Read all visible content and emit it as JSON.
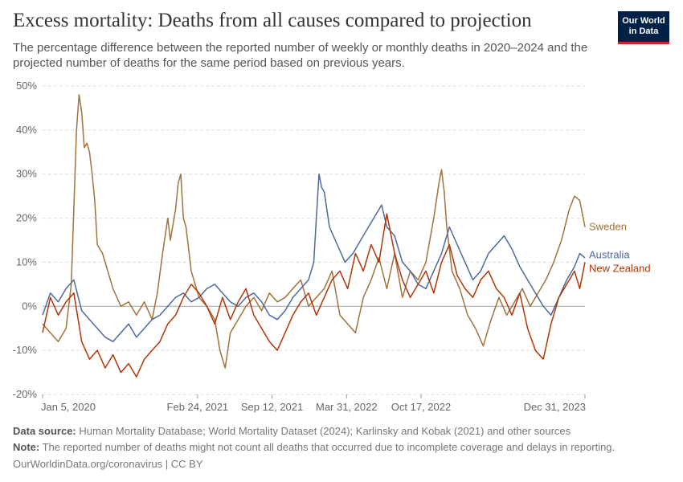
{
  "header": {
    "title": "Excess mortality: Deaths from all causes compared to projection",
    "subtitle": "The percentage difference between the reported number of weekly or monthly deaths in 2020–2024 and the projected number of deaths for the same period based on previous years.",
    "logo_line1": "Our World",
    "logo_line2": "in Data"
  },
  "footer": {
    "source_label": "Data source:",
    "source_text": "Human Mortality Database; World Mortality Dataset (2024); Karlinsky and Kobak (2021) and other sources",
    "note_label": "Note:",
    "note_text": "The reported number of deaths might not count all deaths that occurred due to incomplete coverage and delays in reporting.",
    "credit": "OurWorldinData.org/coronavirus | CC BY"
  },
  "colors": {
    "sweden": "#a2723b",
    "australia": "#4c6a9c",
    "new_zealand": "#b13507",
    "grid": "#dddddd",
    "zero": "#a0a0a0"
  },
  "chart_data": {
    "type": "line",
    "y_unit": "%",
    "ylim": [
      -20,
      50
    ],
    "y_ticks": [
      -20,
      -10,
      0,
      10,
      20,
      30,
      40,
      50
    ],
    "y_tick_labels": [
      "-20%",
      "-10%",
      "0%",
      "10%",
      "20%",
      "30%",
      "40%",
      "50%"
    ],
    "x_start": "2020-01-05",
    "x_end": "2023-12-31",
    "x_ticks": [
      {
        "date": "2020-01-05",
        "label": "Jan 5, 2020"
      },
      {
        "date": "2021-02-24",
        "label": "Feb 24, 2021"
      },
      {
        "date": "2021-09-12",
        "label": "Sep 12, 2021"
      },
      {
        "date": "2022-03-31",
        "label": "Mar 31, 2022"
      },
      {
        "date": "2022-10-17",
        "label": "Oct 17, 2022"
      },
      {
        "date": "2023-12-31",
        "label": "Dec 31, 2023"
      }
    ],
    "grid": true,
    "legend": "right-end labels",
    "series": [
      {
        "name": "Sweden",
        "color": "#a2723b",
        "points": [
          [
            "2020-01-05",
            -4
          ],
          [
            "2020-01-26",
            -6
          ],
          [
            "2020-02-16",
            -8
          ],
          [
            "2020-03-08",
            -5
          ],
          [
            "2020-03-22",
            5
          ],
          [
            "2020-04-05",
            40
          ],
          [
            "2020-04-12",
            48
          ],
          [
            "2020-04-19",
            44
          ],
          [
            "2020-04-26",
            36
          ],
          [
            "2020-05-03",
            37
          ],
          [
            "2020-05-10",
            35
          ],
          [
            "2020-05-17",
            30
          ],
          [
            "2020-05-24",
            24
          ],
          [
            "2020-05-31",
            14
          ],
          [
            "2020-06-14",
            12
          ],
          [
            "2020-06-28",
            8
          ],
          [
            "2020-07-12",
            4
          ],
          [
            "2020-08-02",
            0
          ],
          [
            "2020-08-23",
            1
          ],
          [
            "2020-09-13",
            -2
          ],
          [
            "2020-10-04",
            1
          ],
          [
            "2020-10-25",
            -3
          ],
          [
            "2020-11-08",
            3
          ],
          [
            "2020-11-22",
            12
          ],
          [
            "2020-12-06",
            20
          ],
          [
            "2020-12-13",
            15
          ],
          [
            "2020-12-27",
            22
          ],
          [
            "2021-01-03",
            28
          ],
          [
            "2021-01-10",
            30
          ],
          [
            "2021-01-17",
            20
          ],
          [
            "2021-01-24",
            18
          ],
          [
            "2021-02-07",
            8
          ],
          [
            "2021-02-28",
            2
          ],
          [
            "2021-03-21",
            0
          ],
          [
            "2021-04-11",
            -3
          ],
          [
            "2021-04-25",
            -10
          ],
          [
            "2021-05-09",
            -14
          ],
          [
            "2021-05-23",
            -6
          ],
          [
            "2021-06-13",
            -3
          ],
          [
            "2021-07-04",
            0
          ],
          [
            "2021-07-25",
            2
          ],
          [
            "2021-08-15",
            -1
          ],
          [
            "2021-09-05",
            3
          ],
          [
            "2021-09-26",
            1
          ],
          [
            "2021-10-17",
            2
          ],
          [
            "2021-11-07",
            4
          ],
          [
            "2021-11-28",
            6
          ],
          [
            "2021-12-19",
            0
          ],
          [
            "2022-01-09",
            2
          ],
          [
            "2022-01-30",
            4
          ],
          [
            "2022-02-20",
            8
          ],
          [
            "2022-03-13",
            -2
          ],
          [
            "2022-04-03",
            -4
          ],
          [
            "2022-04-24",
            -6
          ],
          [
            "2022-05-15",
            2
          ],
          [
            "2022-06-05",
            6
          ],
          [
            "2022-06-26",
            11
          ],
          [
            "2022-07-17",
            4
          ],
          [
            "2022-08-07",
            12
          ],
          [
            "2022-08-28",
            2
          ],
          [
            "2022-09-18",
            8
          ],
          [
            "2022-10-09",
            6
          ],
          [
            "2022-10-30",
            10
          ],
          [
            "2022-11-20",
            20
          ],
          [
            "2022-12-04",
            28
          ],
          [
            "2022-12-11",
            31
          ],
          [
            "2022-12-18",
            26
          ],
          [
            "2022-12-25",
            18
          ],
          [
            "2023-01-08",
            8
          ],
          [
            "2023-01-29",
            4
          ],
          [
            "2023-02-19",
            -2
          ],
          [
            "2023-03-12",
            -5
          ],
          [
            "2023-04-02",
            -9
          ],
          [
            "2023-04-23",
            -3
          ],
          [
            "2023-05-14",
            2
          ],
          [
            "2023-06-04",
            -2
          ],
          [
            "2023-06-25",
            1
          ],
          [
            "2023-07-16",
            4
          ],
          [
            "2023-08-06",
            0
          ],
          [
            "2023-08-27",
            3
          ],
          [
            "2023-09-17",
            6
          ],
          [
            "2023-10-08",
            10
          ],
          [
            "2023-10-29",
            15
          ],
          [
            "2023-11-19",
            22
          ],
          [
            "2023-12-03",
            25
          ],
          [
            "2023-12-17",
            24
          ],
          [
            "2023-12-31",
            18
          ]
        ]
      },
      {
        "name": "Australia",
        "color": "#4c6a9c",
        "points": [
          [
            "2020-01-05",
            -2
          ],
          [
            "2020-01-26",
            3
          ],
          [
            "2020-02-16",
            1
          ],
          [
            "2020-03-08",
            4
          ],
          [
            "2020-03-29",
            6
          ],
          [
            "2020-04-19",
            -1
          ],
          [
            "2020-05-10",
            -3
          ],
          [
            "2020-05-31",
            -5
          ],
          [
            "2020-06-21",
            -7
          ],
          [
            "2020-07-12",
            -8
          ],
          [
            "2020-08-02",
            -6
          ],
          [
            "2020-08-23",
            -4
          ],
          [
            "2020-09-13",
            -7
          ],
          [
            "2020-10-04",
            -5
          ],
          [
            "2020-10-25",
            -3
          ],
          [
            "2020-11-15",
            -2
          ],
          [
            "2020-12-06",
            0
          ],
          [
            "2020-12-27",
            2
          ],
          [
            "2021-01-17",
            3
          ],
          [
            "2021-02-07",
            1
          ],
          [
            "2021-02-28",
            2
          ],
          [
            "2021-03-21",
            4
          ],
          [
            "2021-04-11",
            5
          ],
          [
            "2021-05-02",
            3
          ],
          [
            "2021-05-23",
            1
          ],
          [
            "2021-06-13",
            0
          ],
          [
            "2021-07-04",
            2
          ],
          [
            "2021-07-25",
            3
          ],
          [
            "2021-08-15",
            1
          ],
          [
            "2021-09-05",
            -2
          ],
          [
            "2021-09-26",
            -3
          ],
          [
            "2021-10-17",
            -1
          ],
          [
            "2021-11-07",
            2
          ],
          [
            "2021-11-28",
            4
          ],
          [
            "2021-12-19",
            6
          ],
          [
            "2022-01-02",
            10
          ],
          [
            "2022-01-09",
            20
          ],
          [
            "2022-01-16",
            30
          ],
          [
            "2022-01-23",
            27
          ],
          [
            "2022-01-30",
            26
          ],
          [
            "2022-02-13",
            18
          ],
          [
            "2022-03-06",
            14
          ],
          [
            "2022-03-27",
            10
          ],
          [
            "2022-04-17",
            12
          ],
          [
            "2022-05-08",
            15
          ],
          [
            "2022-05-29",
            18
          ],
          [
            "2022-06-19",
            21
          ],
          [
            "2022-07-03",
            23
          ],
          [
            "2022-07-17",
            18
          ],
          [
            "2022-08-07",
            16
          ],
          [
            "2022-08-28",
            10
          ],
          [
            "2022-09-18",
            8
          ],
          [
            "2022-10-09",
            5
          ],
          [
            "2022-10-30",
            4
          ],
          [
            "2022-11-20",
            8
          ],
          [
            "2022-12-11",
            12
          ],
          [
            "2023-01-01",
            18
          ],
          [
            "2023-01-22",
            14
          ],
          [
            "2023-02-12",
            10
          ],
          [
            "2023-03-05",
            6
          ],
          [
            "2023-03-26",
            8
          ],
          [
            "2023-04-16",
            12
          ],
          [
            "2023-05-07",
            14
          ],
          [
            "2023-05-28",
            16
          ],
          [
            "2023-06-18",
            13
          ],
          [
            "2023-07-09",
            9
          ],
          [
            "2023-07-30",
            6
          ],
          [
            "2023-08-20",
            3
          ],
          [
            "2023-09-10",
            0
          ],
          [
            "2023-10-01",
            -2
          ],
          [
            "2023-10-22",
            2
          ],
          [
            "2023-11-12",
            6
          ],
          [
            "2023-12-03",
            9
          ],
          [
            "2023-12-17",
            12
          ],
          [
            "2023-12-31",
            11
          ]
        ]
      },
      {
        "name": "New Zealand",
        "color": "#b13507",
        "points": [
          [
            "2020-01-05",
            -6
          ],
          [
            "2020-01-26",
            2
          ],
          [
            "2020-02-16",
            -2
          ],
          [
            "2020-03-08",
            1
          ],
          [
            "2020-03-29",
            3
          ],
          [
            "2020-04-19",
            -8
          ],
          [
            "2020-05-10",
            -12
          ],
          [
            "2020-05-31",
            -10
          ],
          [
            "2020-06-21",
            -14
          ],
          [
            "2020-07-12",
            -11
          ],
          [
            "2020-08-02",
            -15
          ],
          [
            "2020-08-23",
            -13
          ],
          [
            "2020-09-13",
            -16
          ],
          [
            "2020-10-04",
            -12
          ],
          [
            "2020-10-25",
            -10
          ],
          [
            "2020-11-15",
            -8
          ],
          [
            "2020-12-06",
            -4
          ],
          [
            "2020-12-27",
            -2
          ],
          [
            "2021-01-17",
            2
          ],
          [
            "2021-02-07",
            5
          ],
          [
            "2021-02-28",
            3
          ],
          [
            "2021-03-21",
            0
          ],
          [
            "2021-04-11",
            -4
          ],
          [
            "2021-05-02",
            2
          ],
          [
            "2021-05-23",
            -3
          ],
          [
            "2021-06-13",
            1
          ],
          [
            "2021-07-04",
            4
          ],
          [
            "2021-07-25",
            -2
          ],
          [
            "2021-08-15",
            -5
          ],
          [
            "2021-09-05",
            -8
          ],
          [
            "2021-09-26",
            -10
          ],
          [
            "2021-10-17",
            -6
          ],
          [
            "2021-11-07",
            -2
          ],
          [
            "2021-11-28",
            1
          ],
          [
            "2021-12-19",
            3
          ],
          [
            "2022-01-09",
            -2
          ],
          [
            "2022-01-30",
            2
          ],
          [
            "2022-02-20",
            6
          ],
          [
            "2022-03-13",
            8
          ],
          [
            "2022-04-03",
            4
          ],
          [
            "2022-04-24",
            12
          ],
          [
            "2022-05-15",
            8
          ],
          [
            "2022-06-05",
            14
          ],
          [
            "2022-06-26",
            10
          ],
          [
            "2022-07-17",
            21
          ],
          [
            "2022-08-07",
            12
          ],
          [
            "2022-08-28",
            6
          ],
          [
            "2022-09-18",
            2
          ],
          [
            "2022-10-09",
            5
          ],
          [
            "2022-10-30",
            8
          ],
          [
            "2022-11-20",
            3
          ],
          [
            "2022-12-11",
            10
          ],
          [
            "2023-01-01",
            14
          ],
          [
            "2023-01-22",
            7
          ],
          [
            "2023-02-12",
            4
          ],
          [
            "2023-03-05",
            2
          ],
          [
            "2023-03-26",
            6
          ],
          [
            "2023-04-16",
            8
          ],
          [
            "2023-05-07",
            4
          ],
          [
            "2023-05-28",
            2
          ],
          [
            "2023-06-18",
            -2
          ],
          [
            "2023-07-09",
            3
          ],
          [
            "2023-07-30",
            -5
          ],
          [
            "2023-08-20",
            -10
          ],
          [
            "2023-09-10",
            -12
          ],
          [
            "2023-10-01",
            -4
          ],
          [
            "2023-10-22",
            2
          ],
          [
            "2023-11-12",
            5
          ],
          [
            "2023-12-03",
            8
          ],
          [
            "2023-12-17",
            4
          ],
          [
            "2023-12-31",
            10
          ]
        ]
      }
    ]
  }
}
